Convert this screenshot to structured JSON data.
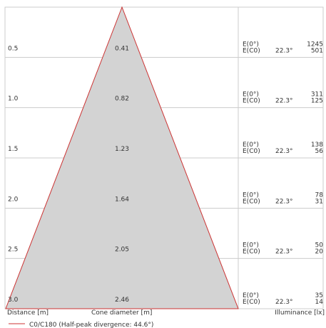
{
  "chart_data": {
    "type": "area",
    "x_label": "Distance [m]",
    "cone_label": "Cone diameter [m]",
    "illuminance_label": "Illuminance [lx]",
    "legend": "C0/C180 (Half-peak divergence: 44.6°)",
    "rows": [
      {
        "distance": "0.5",
        "diameter": "0.41",
        "e0_label": "E(0°)",
        "ec0_label": "E(C0)",
        "angle": "22.3°",
        "e0": "1245",
        "ec0": "501"
      },
      {
        "distance": "1.0",
        "diameter": "0.82",
        "e0_label": "E(0°)",
        "ec0_label": "E(C0)",
        "angle": "22.3°",
        "e0": "311",
        "ec0": "125"
      },
      {
        "distance": "1.5",
        "diameter": "1.23",
        "e0_label": "E(0°)",
        "ec0_label": "E(C0)",
        "angle": "22.3°",
        "e0": "138",
        "ec0": "56"
      },
      {
        "distance": "2.0",
        "diameter": "1.64",
        "e0_label": "E(0°)",
        "ec0_label": "E(C0)",
        "angle": "22.3°",
        "e0": "78",
        "ec0": "31"
      },
      {
        "distance": "2.5",
        "diameter": "2.05",
        "e0_label": "E(0°)",
        "ec0_label": "E(C0)",
        "angle": "22.3°",
        "e0": "50",
        "ec0": "20"
      },
      {
        "distance": "3.0",
        "diameter": "2.46",
        "e0_label": "E(0°)",
        "ec0_label": "E(C0)",
        "angle": "22.3°",
        "e0": "35",
        "ec0": "14"
      }
    ],
    "max_distance": 3.0,
    "max_diameter": 2.46,
    "colors": {
      "cone_fill": "#d3d3d3",
      "cone_edge": "#cc3333",
      "grid": "#cccccc"
    }
  }
}
